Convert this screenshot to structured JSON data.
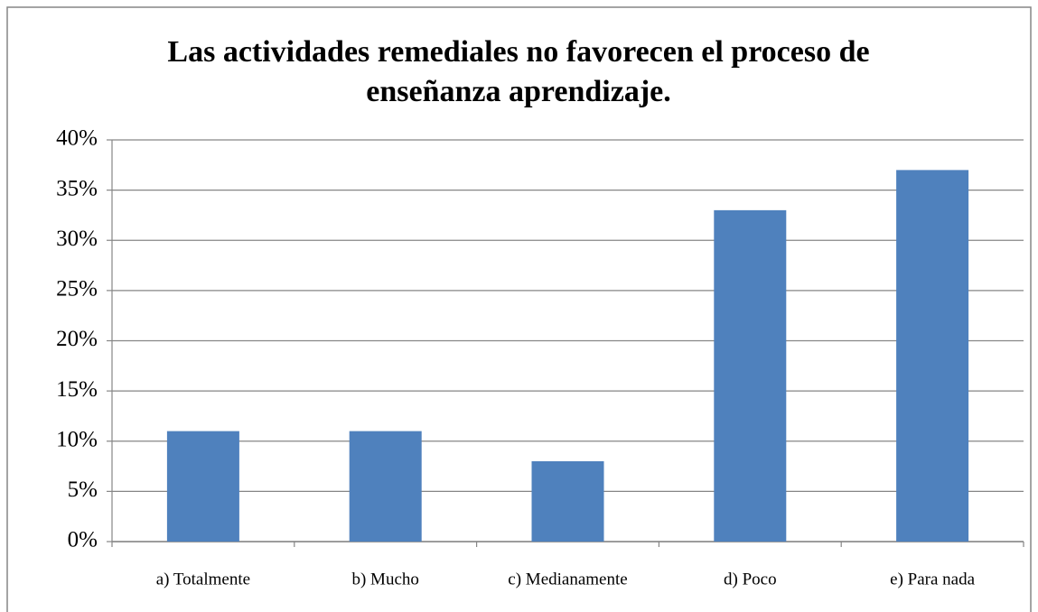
{
  "chart_data": {
    "type": "bar",
    "title": "Las actividades remediales no favorecen el proceso de enseñanza aprendizaje.",
    "categories": [
      "a) Totalmente",
      "b) Mucho",
      "c) Medianamente",
      "d) Poco",
      "e) Para nada"
    ],
    "values": [
      11,
      11,
      8,
      33,
      37
    ],
    "color": "#4f81bd",
    "ylim": [
      0,
      40
    ],
    "yticks": [
      {
        "value": 0,
        "label": "0%"
      },
      {
        "value": 5,
        "label": "5%"
      },
      {
        "value": 10,
        "label": "10%"
      },
      {
        "value": 15,
        "label": "15%"
      },
      {
        "value": 20,
        "label": "20%"
      },
      {
        "value": 25,
        "label": "25%"
      },
      {
        "value": 30,
        "label": "30%"
      },
      {
        "value": 35,
        "label": "35%"
      },
      {
        "value": 40,
        "label": "40%"
      }
    ],
    "grid": true
  }
}
